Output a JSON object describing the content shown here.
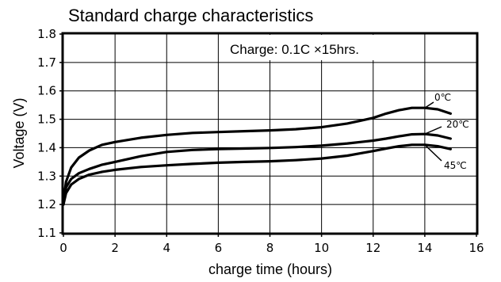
{
  "chart_data": {
    "type": "line",
    "title": "Standard charge characteristics",
    "xlabel": "charge time (hours)",
    "ylabel": "Voltage (V)",
    "xlim": [
      0,
      16
    ],
    "ylim": [
      1.1,
      1.8
    ],
    "xticks": [
      "0",
      "2",
      "4",
      "6",
      "8",
      "10",
      "12",
      "14",
      "16"
    ],
    "yticks": [
      "1.1",
      "1.2",
      "1.3",
      "1.4",
      "1.5",
      "1.6",
      "1.7",
      "1.8"
    ],
    "grid": true,
    "annotation": "Charge: 0.1C  ×15hrs.",
    "series": [
      {
        "name": "0℃",
        "x": [
          0,
          0.1,
          0.3,
          0.6,
          1,
          1.5,
          2,
          3,
          4,
          5,
          6,
          7,
          8,
          9,
          10,
          11,
          11.5,
          12,
          12.5,
          13,
          13.5,
          14,
          14.5,
          15
        ],
        "y": [
          1.21,
          1.28,
          1.33,
          1.365,
          1.39,
          1.41,
          1.42,
          1.435,
          1.445,
          1.452,
          1.455,
          1.458,
          1.461,
          1.465,
          1.472,
          1.485,
          1.495,
          1.505,
          1.52,
          1.532,
          1.54,
          1.54,
          1.535,
          1.52
        ]
      },
      {
        "name": "20℃",
        "x": [
          0,
          0.1,
          0.3,
          0.6,
          1,
          1.5,
          2,
          3,
          4,
          5,
          6,
          7,
          8,
          9,
          10,
          11,
          11.5,
          12,
          12.5,
          13,
          13.5,
          14,
          14.5,
          15
        ],
        "y": [
          1.2,
          1.26,
          1.29,
          1.31,
          1.325,
          1.34,
          1.35,
          1.37,
          1.385,
          1.392,
          1.395,
          1.397,
          1.399,
          1.402,
          1.407,
          1.415,
          1.42,
          1.425,
          1.432,
          1.44,
          1.447,
          1.448,
          1.443,
          1.432
        ]
      },
      {
        "name": "45℃",
        "x": [
          0,
          0.1,
          0.3,
          0.6,
          1,
          1.5,
          2,
          3,
          4,
          5,
          6,
          7,
          8,
          9,
          10,
          11,
          11.5,
          12,
          12.5,
          13,
          13.5,
          14,
          14.5,
          15
        ],
        "y": [
          1.2,
          1.24,
          1.27,
          1.29,
          1.305,
          1.315,
          1.322,
          1.332,
          1.338,
          1.343,
          1.347,
          1.35,
          1.352,
          1.356,
          1.362,
          1.372,
          1.38,
          1.388,
          1.397,
          1.405,
          1.41,
          1.41,
          1.405,
          1.395
        ]
      }
    ]
  }
}
